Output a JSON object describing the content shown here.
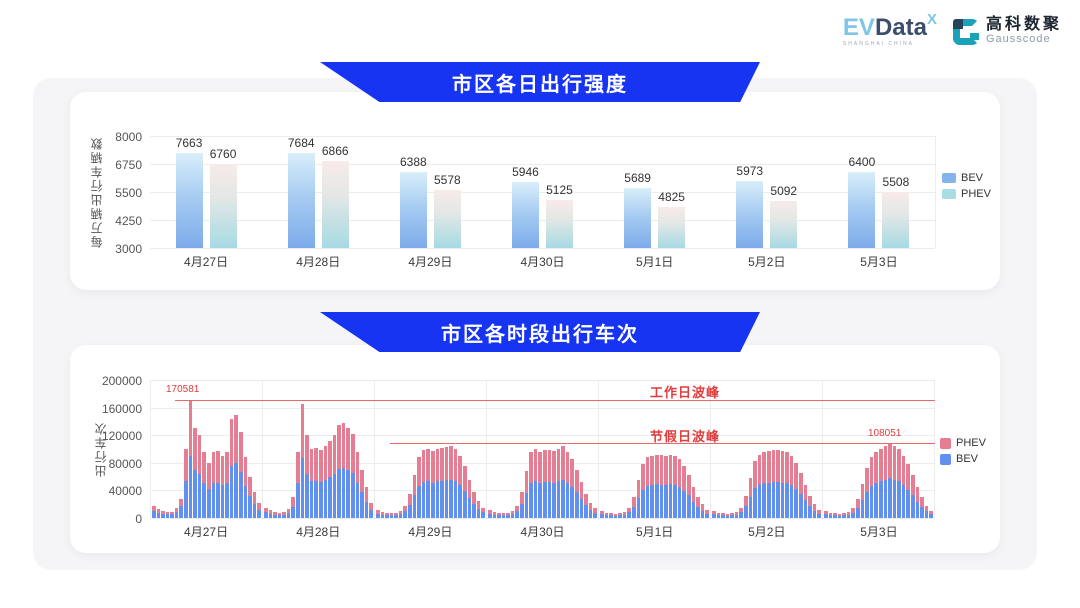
{
  "header": {
    "evdata_logo": {
      "ev": "EV",
      "data": "Data",
      "x": "X",
      "tagline": "SHANGHAI CHINA"
    },
    "gausscode_logo": {
      "name_cn": "高科数聚",
      "name_en": "Gausscode"
    }
  },
  "colors": {
    "banner_blue": "#1634f2",
    "chart1_bev_gradient": [
      "#d9eefa",
      "#7dabea"
    ],
    "chart1_phev_gradient": [
      "#f8ebe7",
      "#a6dae3"
    ],
    "chart2_bev": "#6190f0",
    "chart2_phev": "#e57d93",
    "annotation_red": "#e13c3c",
    "grid": "#ececec"
  },
  "chart_data": [
    {
      "type": "bar",
      "title": "市区各日出行强度",
      "ylabel": "每万辆出行车辆数",
      "ylim": [
        3000,
        8000
      ],
      "yticks": [
        3000,
        4250,
        5500,
        6750,
        8000
      ],
      "grid": true,
      "legend_position": "right",
      "categories": [
        "4月27日",
        "4月28日",
        "4月29日",
        "4月30日",
        "5月1日",
        "5月2日",
        "5月3日"
      ],
      "series": [
        {
          "name": "BEV",
          "values": [
            7663,
            7684,
            6388,
            5946,
            5689,
            5973,
            6400
          ]
        },
        {
          "name": "PHEV",
          "values": [
            6760,
            6866,
            5578,
            5125,
            4825,
            5092,
            5508
          ]
        }
      ]
    },
    {
      "type": "bar",
      "stacked": true,
      "title": "市区各时段出行车次",
      "ylabel": "出行车次",
      "ylim": [
        0,
        200000
      ],
      "yticks": [
        0,
        40000,
        80000,
        120000,
        160000,
        200000
      ],
      "grid": true,
      "legend_position": "right",
      "hours_per_day": 24,
      "categories": [
        "4月27日",
        "4月28日",
        "4月29日",
        "4月30日",
        "5月1日",
        "5月2日",
        "5月3日"
      ],
      "annotations": {
        "workday": {
          "label": "工作日波峰",
          "value": 170581
        },
        "holiday": {
          "label": "节假日波峰",
          "value": 108051
        }
      },
      "series": [
        {
          "name": "BEV",
          "values_by_day": [
            [
              10800,
              7800,
              6000,
              5400,
              5400,
              8400,
              16800,
              53000,
              90400,
              68900,
              63600,
              50400,
              42400,
              50400,
              51400,
              47700,
              50400,
              75800,
              79500,
              66200,
              46600,
              31800,
              20100,
              11700
            ],
            [
              8000,
              5800,
              4800,
              4200,
              4800,
              6900,
              15900,
              50400,
              87500,
              63600,
              53000,
              54100,
              51900,
              55700,
              59400,
              63600,
              71600,
              72600,
              68900,
              64700,
              50400,
              37100,
              23900,
              11700
            ],
            [
              6400,
              4800,
              4200,
              3700,
              4200,
              5300,
              9500,
              18600,
              32900,
              46600,
              51900,
              53000,
              51400,
              53000,
              54100,
              54600,
              55700,
              53000,
              47700,
              39800,
              29200,
              20100,
              13300,
              8000
            ],
            [
              6400,
              4800,
              4200,
              3700,
              4200,
              5300,
              9500,
              20100,
              36000,
              50400,
              53000,
              50900,
              51900,
              52500,
              51400,
              53000,
              55100,
              50400,
              45100,
              37100,
              27600,
              18600,
              11700,
              7400
            ],
            [
              5300,
              4200,
              3700,
              3200,
              3700,
              4800,
              8000,
              15900,
              29200,
              41300,
              46600,
              47700,
              48800,
              48200,
              47700,
              48800,
              47700,
              45100,
              39800,
              32900,
              23900,
              15900,
              10600,
              6400
            ],
            [
              5300,
              4200,
              3700,
              3200,
              3700,
              4800,
              8000,
              17000,
              30700,
              43500,
              48800,
              50400,
              51400,
              52500,
              51900,
              51400,
              50400,
              47700,
              42400,
              34500,
              25400,
              17000,
              10600,
              6400
            ],
            [
              5300,
              4200,
              3700,
              3200,
              3700,
              4800,
              7400,
              14800,
              26500,
              38200,
              46600,
              50900,
              53000,
              55100,
              57300,
              55700,
              53000,
              47700,
              41300,
              32900,
              23900,
              15900,
              9500,
              5300
            ]
          ]
        },
        {
          "name": "PHEV",
          "values_by_day": [
            [
              7200,
              5200,
              4000,
              3600,
              3600,
              5600,
              11200,
              47000,
              80181,
              61100,
              56400,
              44600,
              37600,
              44600,
              45600,
              42300,
              44600,
              67200,
              70500,
              58800,
              41400,
              28200,
              17900,
              10300
            ],
            [
              7000,
              5200,
              4200,
              3800,
              4200,
              6100,
              14100,
              44600,
              77500,
              56400,
              47000,
              47900,
              46100,
              49300,
              52600,
              56400,
              63400,
              64400,
              61100,
              57300,
              44600,
              32900,
              21100,
              10300
            ],
            [
              5600,
              4200,
              3800,
              3300,
              3800,
              4700,
              8500,
              16400,
              29100,
              41400,
              46100,
              47000,
              45600,
              47000,
              47900,
              48400,
              49300,
              47000,
              42300,
              35200,
              25800,
              17900,
              11700,
              7000
            ],
            [
              5600,
              4200,
              3800,
              3300,
              3800,
              4700,
              8500,
              17900,
              32000,
              44600,
              47000,
              45100,
              46100,
              46500,
              45600,
              47000,
              48900,
              44600,
              39900,
              32900,
              24400,
              16400,
              10300,
              6600
            ],
            [
              4700,
              3800,
              3300,
              2800,
              3300,
              4200,
              7000,
              14100,
              25800,
              36700,
              41400,
              42300,
              43200,
              42800,
              42300,
              43200,
              42300,
              39900,
              35200,
              29100,
              21100,
              14100,
              9400,
              5600
            ],
            [
              4700,
              3800,
              3300,
              2800,
              3300,
              4200,
              7000,
              15000,
              27300,
              38500,
              43200,
              44600,
              45600,
              46500,
              46100,
              45600,
              44600,
              42300,
              37600,
              30500,
              22600,
              15000,
              9400,
              5600
            ],
            [
              4700,
              3800,
              3300,
              2800,
              3300,
              4200,
              6600,
              13200,
              23500,
              33800,
              41400,
              45100,
              47000,
              48900,
              50751,
              49300,
              47000,
              42300,
              36700,
              29100,
              21100,
              14100,
              8500,
              4700
            ]
          ]
        }
      ]
    }
  ]
}
